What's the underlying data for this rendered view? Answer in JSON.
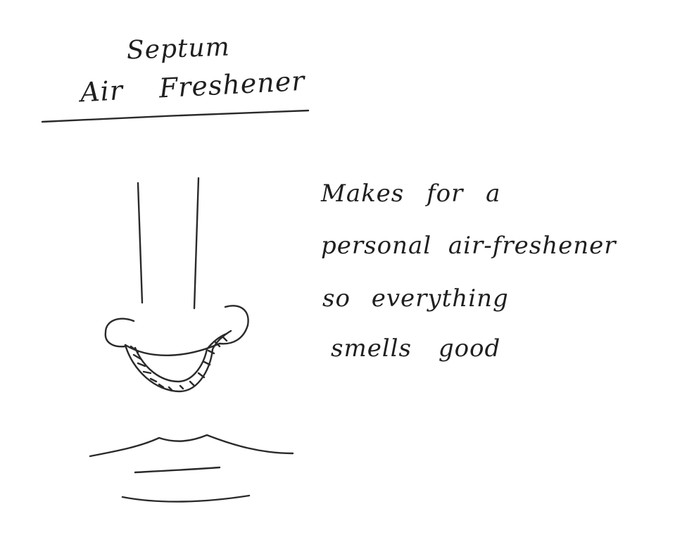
{
  "title": {
    "line1": "Septum",
    "line2": "Air Freshener"
  },
  "note": {
    "line1": "Makes for a",
    "line2": "personal air-freshener",
    "line3": "so everything",
    "line4": "smells good"
  },
  "ink_color": "#2a2a2a",
  "background_color": "#ffffff"
}
